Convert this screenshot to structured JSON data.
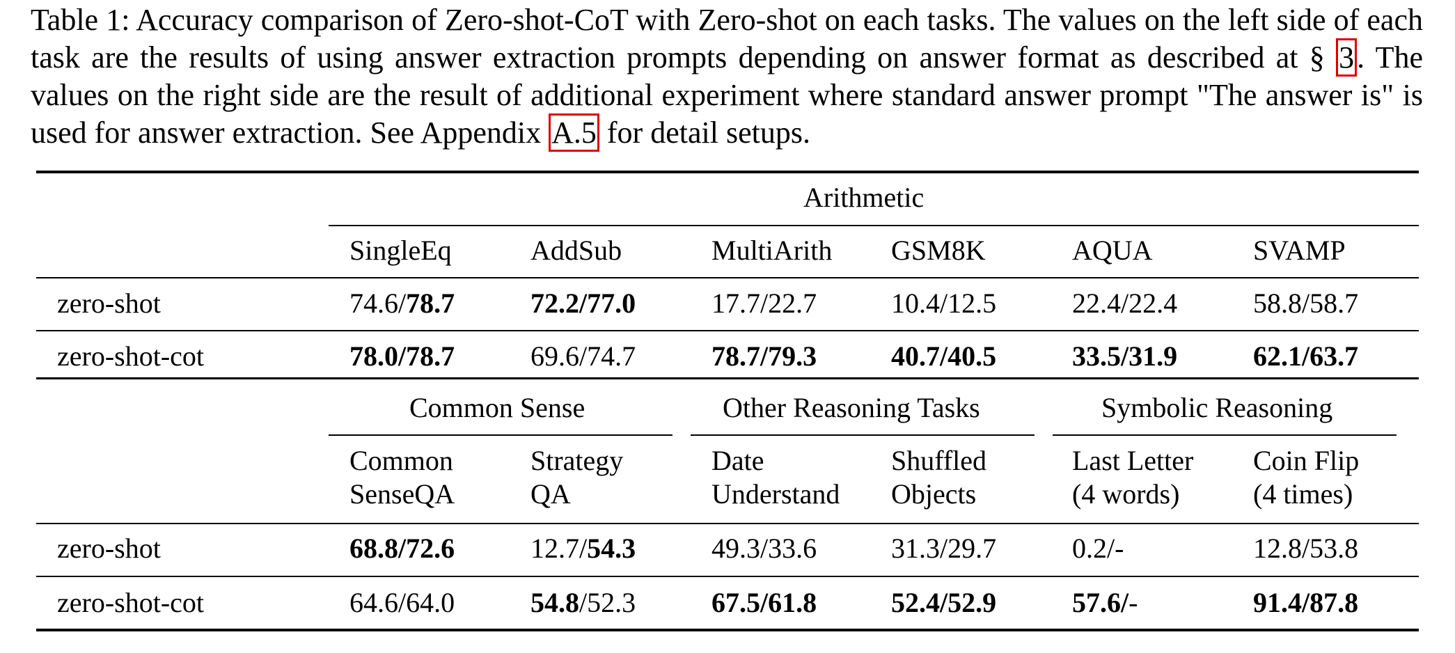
{
  "caption": {
    "prefix": "Table 1: Accuracy comparison of Zero-shot-CoT with Zero-shot on each tasks. The values on the left side of each task are the results of using answer extraction prompts depending on answer format as described at § ",
    "ref1": "3",
    "middle": ". The values on the right side are the result of additional experiment where standard answer prompt \"The answer is\" is used for answer extraction. See Appendix ",
    "ref2": "A.5",
    "suffix": " for detail setups."
  },
  "table": {
    "group1": {
      "header": "Arithmetic",
      "columns": [
        "SingleEq",
        "AddSub",
        "MultiArith",
        "GSM8K",
        "AQUA",
        "SVAMP"
      ],
      "rows": [
        {
          "label": "zero-shot",
          "cells": [
            {
              "a": "74.6/",
              "b": "78.7"
            },
            {
              "b": "72.2/77.0"
            },
            {
              "a": "17.7/22.7"
            },
            {
              "a": "10.4/12.5"
            },
            {
              "a": "22.4/22.4"
            },
            {
              "a": "58.8/58.7"
            }
          ]
        },
        {
          "label": "zero-shot-cot",
          "cells": [
            {
              "b": "78.0/78.7"
            },
            {
              "a": "69.6/74.7"
            },
            {
              "b": "78.7/79.3"
            },
            {
              "b": "40.7/40.5"
            },
            {
              "b": "33.5/31.9"
            },
            {
              "b": "62.1/63.7"
            }
          ]
        }
      ]
    },
    "group2": {
      "headers": [
        "Common Sense",
        "Other Reasoning Tasks",
        "Symbolic Reasoning"
      ],
      "columns": [
        {
          "line1": "Common",
          "line2": "SenseQA"
        },
        {
          "line1": "Strategy",
          "line2": "QA"
        },
        {
          "line1": "Date",
          "line2": "Understand"
        },
        {
          "line1": "Shuffled",
          "line2": "Objects"
        },
        {
          "line1": "Last Letter",
          "line2": "(4 words)"
        },
        {
          "line1": "Coin Flip",
          "line2": "(4 times)"
        }
      ],
      "rows": [
        {
          "label": "zero-shot",
          "cells": [
            {
              "b": "68.8/72.6"
            },
            {
              "a": "12.7/",
              "b": "54.3"
            },
            {
              "a": "49.3/33.6"
            },
            {
              "a": "31.3/29.7"
            },
            {
              "a": "0.2/-"
            },
            {
              "a": "12.8/53.8"
            }
          ]
        },
        {
          "label": "zero-shot-cot",
          "cells": [
            {
              "a": "64.6/64.0"
            },
            {
              "b": "54.8",
              "a2": "/52.3"
            },
            {
              "b": "67.5/61.8"
            },
            {
              "b": "52.4/52.9"
            },
            {
              "b": "57.6/",
              "a2": "-"
            },
            {
              "b": "91.4/87.8"
            }
          ]
        }
      ]
    }
  }
}
